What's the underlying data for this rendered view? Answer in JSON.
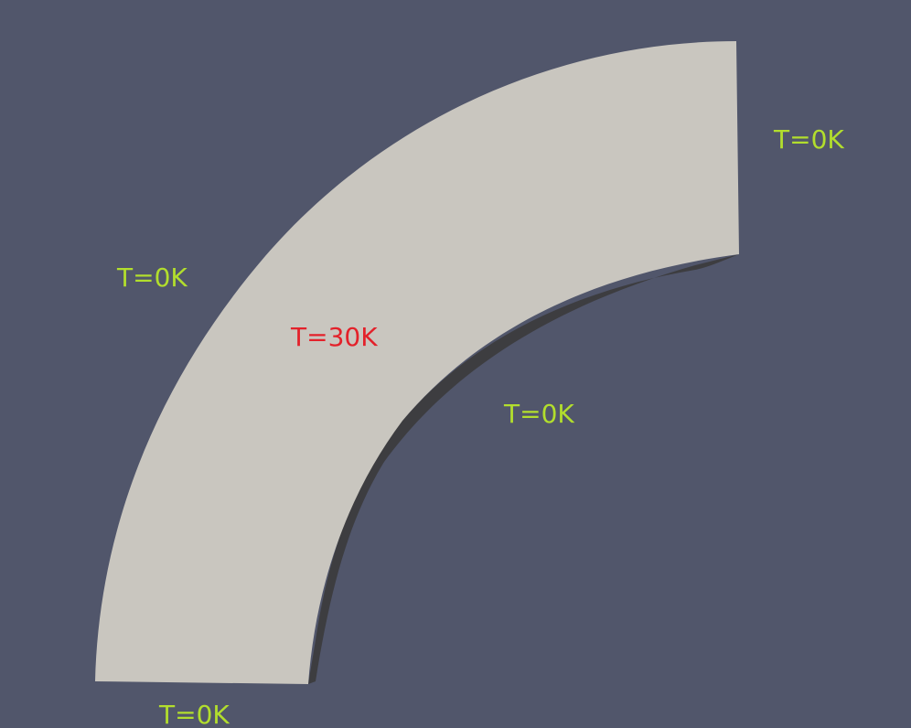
{
  "colors": {
    "background": "#51566b",
    "domain_fill": "#c9c6bf",
    "domain_shadow": "#3d3d40",
    "boundary_label": "#b2de2d",
    "interior_label": "#e3212a"
  },
  "labels": {
    "boundary_right_end": "T=0K",
    "boundary_outer_arc": "T=0K",
    "interior": "T=30K",
    "boundary_inner_arc": "T=0K",
    "boundary_bottom_end": "T=0K"
  }
}
